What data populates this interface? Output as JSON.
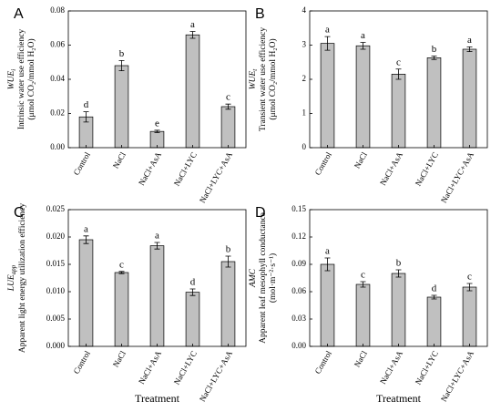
{
  "chart_data": [
    {
      "type": "bar",
      "panel": "A",
      "y_symbol": "WUE",
      "y_symbol_sub": "i",
      "y_label": "Intrinsic water use efficiency",
      "y_units": "(μmol CO₂/mmol H₂O)",
      "categories": [
        "Control",
        "NaCl",
        "NaCl+AsA",
        "NaCl+LYC",
        "NaCl+LYC+AsA"
      ],
      "values": [
        0.018,
        0.048,
        0.0095,
        0.066,
        0.024
      ],
      "errors": [
        0.003,
        0.003,
        0.0007,
        0.002,
        0.0015
      ],
      "letters": [
        "d",
        "b",
        "e",
        "a",
        "c"
      ],
      "color": "#c0c0c0",
      "ylim": [
        0,
        0.08
      ],
      "yticks": [
        {
          "value": 0,
          "label": "0.00"
        },
        {
          "value": 0.02,
          "label": "0.02"
        },
        {
          "value": 0.04,
          "label": "0.04"
        },
        {
          "value": 0.06,
          "label": "0.06"
        },
        {
          "value": 0.08,
          "label": "0.08"
        }
      ]
    },
    {
      "type": "bar",
      "panel": "B",
      "y_symbol": "WUE",
      "y_symbol_sub": "t",
      "y_label": "Transient water use efficiency",
      "y_units": "(μmol CO₂/mmol H₂O)",
      "categories": [
        "Control",
        "NaCl",
        "NaCl+AsA",
        "NaCl+LYC",
        "NaCl+LYC+AsA"
      ],
      "values": [
        3.05,
        2.98,
        2.15,
        2.63,
        2.88
      ],
      "errors": [
        0.2,
        0.1,
        0.15,
        0.05,
        0.07
      ],
      "letters": [
        "a",
        "a",
        "c",
        "b",
        "a"
      ],
      "color": "#c0c0c0",
      "ylim": [
        0,
        4
      ],
      "yticks": [
        0,
        1,
        2,
        3,
        4
      ]
    },
    {
      "type": "bar",
      "panel": "C",
      "y_symbol": "LUE",
      "y_symbol_sub": "app",
      "y_label": "Apparent light energy utilization efficiency",
      "x_label": "Treatment",
      "categories": [
        "Control",
        "NaCl",
        "NaCl+AsA",
        "NaCl+LYC",
        "NaCl+LYC+AsA"
      ],
      "values": [
        0.0195,
        0.0135,
        0.0184,
        0.0099,
        0.0155
      ],
      "errors": [
        0.0007,
        0.0002,
        0.0006,
        0.0006,
        0.001
      ],
      "letters": [
        "a",
        "c",
        "a",
        "d",
        "b"
      ],
      "color": "#c0c0c0",
      "ylim": [
        0,
        0.025
      ],
      "yticks": [
        {
          "value": 0,
          "label": "0.000"
        },
        {
          "value": 0.005,
          "label": "0.005"
        },
        {
          "value": 0.01,
          "label": "0.010"
        },
        {
          "value": 0.015,
          "label": "0.015"
        },
        {
          "value": 0.02,
          "label": "0.020"
        },
        {
          "value": 0.025,
          "label": "0.025"
        }
      ]
    },
    {
      "type": "bar",
      "panel": "D",
      "y_symbol": "AMC",
      "y_label": "Apparent leaf mesophyll conductance",
      "y_units": "(mol·m⁻²·s⁻¹)",
      "x_label": "Treatment",
      "categories": [
        "Control",
        "NaCl",
        "NaCl+AsA",
        "NaCl+LYC",
        "NaCl+LYC+AsA"
      ],
      "values": [
        0.09,
        0.068,
        0.08,
        0.054,
        0.065
      ],
      "errors": [
        0.007,
        0.003,
        0.004,
        0.002,
        0.004
      ],
      "letters": [
        "a",
        "c",
        "b",
        "d",
        "c"
      ],
      "color": "#c0c0c0",
      "ylim": [
        0,
        0.15
      ],
      "yticks": [
        {
          "value": 0,
          "label": "0.00"
        },
        {
          "value": 0.03,
          "label": "0.03"
        },
        {
          "value": 0.06,
          "label": "0.06"
        },
        {
          "value": 0.09,
          "label": "0.09"
        },
        {
          "value": 0.12,
          "label": "0.12"
        },
        {
          "value": 0.15,
          "label": "0.15"
        }
      ]
    }
  ]
}
